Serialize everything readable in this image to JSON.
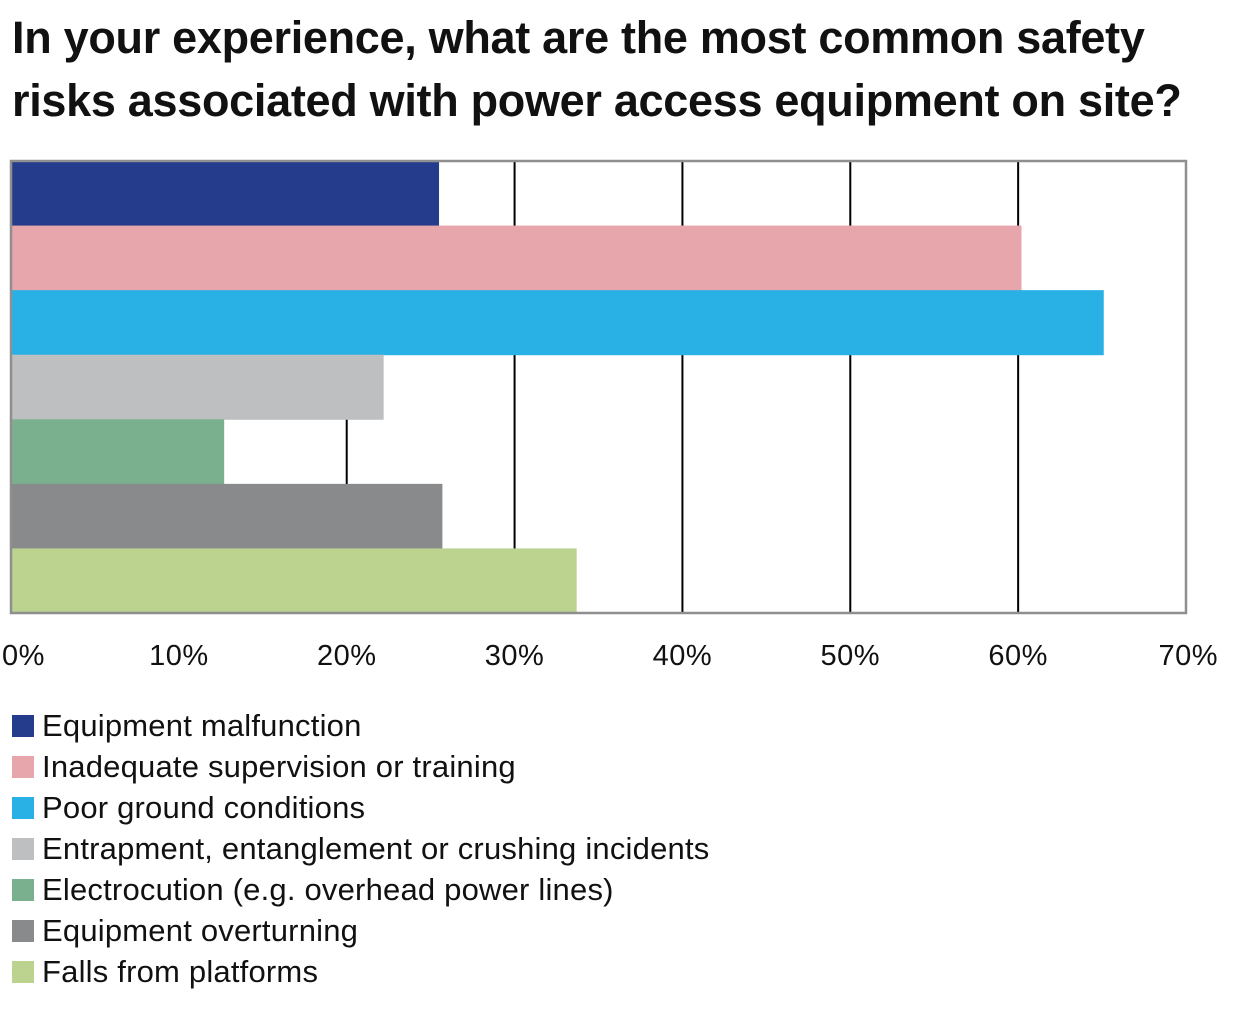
{
  "chart_data": {
    "type": "bar",
    "orientation": "horizontal",
    "title": "In your experience, what are the most common safety risks associated with power access equipment on site?",
    "xlabel": "",
    "ylabel": "",
    "xlim": [
      0,
      70
    ],
    "x_ticks": [
      0,
      10,
      20,
      30,
      40,
      50,
      60,
      70
    ],
    "x_tick_labels": [
      "0%",
      "10%",
      "20%",
      "30%",
      "40%",
      "50%",
      "60%",
      "70%"
    ],
    "grid": "vertical lines at 20%-60%, partially hidden behind bars",
    "legend_position": "bottom-left",
    "categories": [
      "Equipment malfunction",
      "Inadequate supervision or training",
      "Poor ground conditions",
      "Entrapment, entanglement or crushing incidents",
      "Electrocution (e.g. overhead power lines)",
      "Equipment overturning",
      "Falls from platforms"
    ],
    "values": [
      25.5,
      60.2,
      65.1,
      22.2,
      12.7,
      25.7,
      33.7
    ],
    "unit": "%",
    "colors": [
      "#253b8b",
      "#e6a6ab",
      "#29b0e4",
      "#bdbfc1",
      "#7bb08e",
      "#898a8b",
      "#bcd28f"
    ]
  }
}
